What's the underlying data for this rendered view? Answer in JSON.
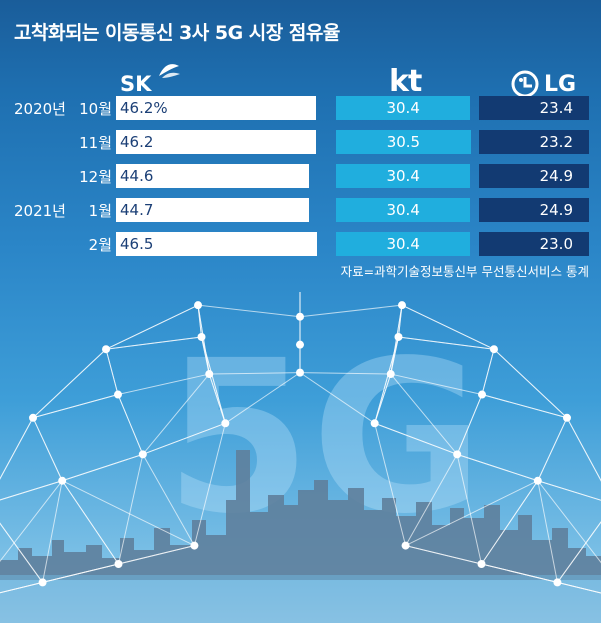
{
  "title": "고착화되는 이동통신 3사 5G 시장 점유율",
  "brands": {
    "sk": "SK",
    "kt": "kt",
    "lg": "LG"
  },
  "source": "자료=과학기술정보통신부 무선통신서비스 통계",
  "background_text": "5G",
  "chart_data": {
    "type": "bar",
    "stacked": true,
    "orientation": "horizontal",
    "unit": "%",
    "year_labels": [
      "2020년",
      "",
      "",
      "2021년",
      ""
    ],
    "month_labels": [
      "10월",
      "11월",
      "12월",
      "1월",
      "2월"
    ],
    "categories": [
      "2020년 10월",
      "2020년 11월",
      "2020년 12월",
      "2021년 1월",
      "2021년 2월"
    ],
    "series": [
      {
        "name": "SK",
        "values": [
          46.2,
          46.2,
          44.6,
          44.7,
          46.5
        ],
        "labels": [
          "46.2%",
          "46.2",
          "44.6",
          "44.7",
          "46.5"
        ],
        "color": "#ffffff"
      },
      {
        "name": "kt",
        "values": [
          30.4,
          30.5,
          30.4,
          30.4,
          30.4
        ],
        "labels": [
          "30.4",
          "30.5",
          "30.4",
          "30.4",
          "30.4"
        ],
        "color": "#20aede"
      },
      {
        "name": "LG",
        "values": [
          23.4,
          23.2,
          24.9,
          24.9,
          23.0
        ],
        "labels": [
          "23.4",
          "23.2",
          "24.9",
          "24.9",
          "23.0"
        ],
        "color": "#123a72"
      }
    ]
  }
}
